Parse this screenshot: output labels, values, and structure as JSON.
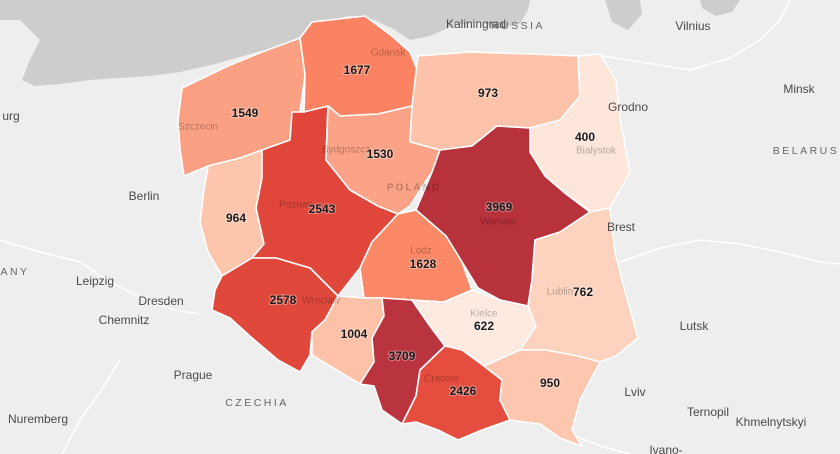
{
  "regions": [
    {
      "id": "zachodniopomorskie",
      "value": "1549",
      "color": "#fca084",
      "city": "Szczecin"
    },
    {
      "id": "pomorskie",
      "value": "1677",
      "color": "#fb8263",
      "city": "Gdansk"
    },
    {
      "id": "warminsko-mazurskie",
      "value": "973",
      "color": "#fdc3aa",
      "city": ""
    },
    {
      "id": "podlaskie",
      "value": "400",
      "color": "#fee6da",
      "city": "Bialystok"
    },
    {
      "id": "lubuskie",
      "value": "964",
      "color": "#fdc5ac",
      "city": ""
    },
    {
      "id": "wielkopolskie",
      "value": "2543",
      "color": "#e0473a",
      "city": "Poznan"
    },
    {
      "id": "kujawsko-pomorskie",
      "value": "1530",
      "color": "#fca286",
      "city": "Bydgoszcz"
    },
    {
      "id": "mazowieckie",
      "value": "3969",
      "color": "#b8323c",
      "city": "Warsaw"
    },
    {
      "id": "lodzkie",
      "value": "1628",
      "color": "#fb8866",
      "city": "Lodz"
    },
    {
      "id": "dolnoslaskie",
      "value": "2578",
      "color": "#e0483b",
      "city": "Wroclaw"
    },
    {
      "id": "opolskie",
      "value": "1004",
      "color": "#fdc1a7",
      "city": ""
    },
    {
      "id": "slaskie",
      "value": "3709",
      "color": "#ba343f",
      "city": ""
    },
    {
      "id": "swietokrzyskie",
      "value": "622",
      "color": "#feeae1",
      "city": "Kielce"
    },
    {
      "id": "lubelskie",
      "value": "762",
      "color": "#fdd3bf",
      "city": "Lublin"
    },
    {
      "id": "malopolskie",
      "value": "2426",
      "color": "#e54e3f",
      "city": "Cracow"
    },
    {
      "id": "podkarpackie",
      "value": "950",
      "color": "#fdc6ae",
      "city": ""
    }
  ],
  "cities": {
    "kaliningrad": "Kaliningrad",
    "vilnius": "Vilnius",
    "minsk": "Minsk",
    "grodno": "Grodno",
    "brest": "Brest",
    "berlin": "Berlin",
    "leipzig": "Leipzig",
    "dresden": "Dresden",
    "chemnitz": "Chemnitz",
    "prague": "Prague",
    "nuremberg": "Nuremberg",
    "lutsk": "Lutsk",
    "lviv": "Lviv",
    "ternopil": "Ternopil",
    "khmelnytskyi": "Khmelnytskyi",
    "ivano": "Ivano-",
    "urg": "urg"
  },
  "countries": {
    "russia": "RUSSIA",
    "belarus": "BELARUS",
    "germany": "ANY",
    "czechia": "CZECHIA",
    "poland": "POLAND"
  },
  "colors": {
    "background": "#eeeeee",
    "sea": "#cdcdcd",
    "region_border": "#ffffff"
  }
}
